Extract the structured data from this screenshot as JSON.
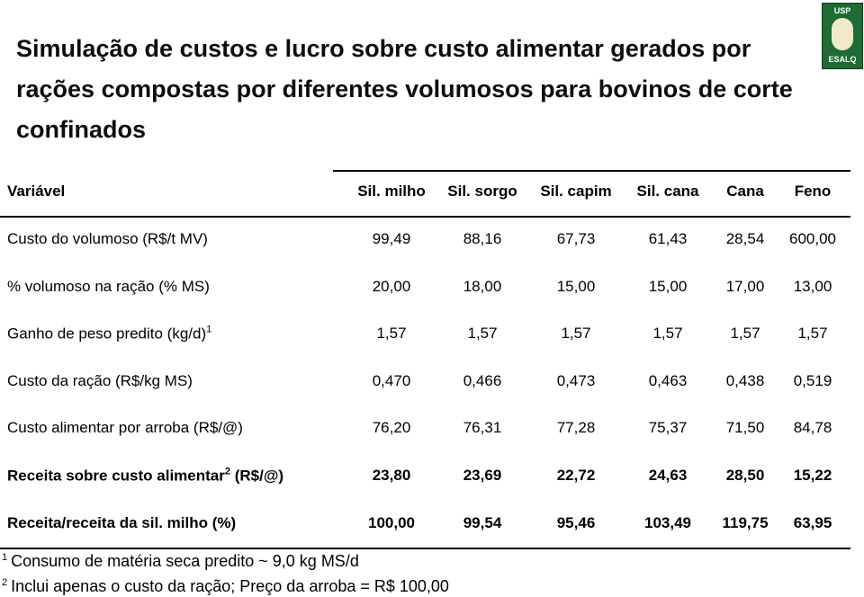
{
  "title": "Simulação de custos e lucro sobre custo alimentar gerados por rações compostas por diferentes volumosos para bovinos de corte confinados",
  "logo": {
    "top": "USP",
    "bottom": "ESALQ"
  },
  "table": {
    "header": [
      "Variável",
      "Sil. milho",
      "Sil. sorgo",
      "Sil. capim",
      "Sil. cana",
      "Cana",
      "Feno"
    ],
    "rows": [
      {
        "label": "Custo do volumoso (R$/t MV)",
        "values": [
          "99,49",
          "88,16",
          "67,73",
          "61,43",
          "28,54",
          "600,00"
        ]
      },
      {
        "label": "% volumoso na ração (% MS)",
        "values": [
          "20,00",
          "18,00",
          "15,00",
          "15,00",
          "17,00",
          "13,00"
        ]
      },
      {
        "label": "Ganho de peso predito (kg/d)",
        "sup": "1",
        "values": [
          "1,57",
          "1,57",
          "1,57",
          "1,57",
          "1,57",
          "1,57"
        ]
      },
      {
        "label": "Custo da ração (R$/kg MS)",
        "values": [
          "0,470",
          "0,466",
          "0,473",
          "0,463",
          "0,438",
          "0,519"
        ]
      },
      {
        "label": "Custo alimentar por arroba (R$/@)",
        "values": [
          "76,20",
          "76,31",
          "77,28",
          "75,37",
          "71,50",
          "84,78"
        ]
      },
      {
        "label": "Receita sobre custo alimentar",
        "sup": "2",
        "suffix": " (R$/@)",
        "bold": true,
        "values": [
          "23,80",
          "23,69",
          "22,72",
          "24,63",
          "28,50",
          "15,22"
        ]
      },
      {
        "label": "Receita/receita da sil. milho (%)",
        "bold": true,
        "values": [
          "100,00",
          "99,54",
          "95,46",
          "103,49",
          "119,75",
          "63,95"
        ]
      }
    ]
  },
  "footnotes": [
    {
      "mark": "1",
      "text": "Consumo de matéria seca predito ~ 9,0 kg MS/d"
    },
    {
      "mark": "2",
      "text": "Inclui apenas o custo da ração; Preço da arroba = R$ 100,00"
    }
  ]
}
